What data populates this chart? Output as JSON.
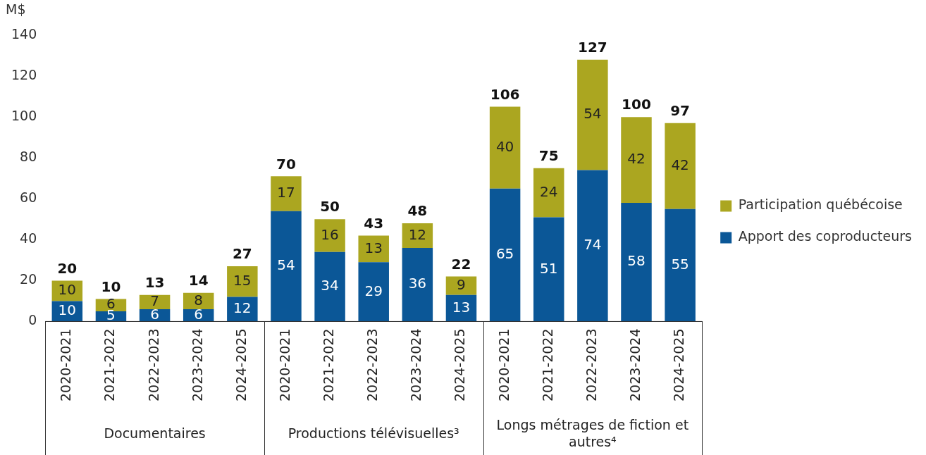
{
  "chart_data": {
    "type": "bar",
    "stacked": true,
    "ylabel": "M$",
    "categories": [
      "2020-2021",
      "2021-2022",
      "2022-2023",
      "2023-2024",
      "2024-2025",
      "2020-2021",
      "2021-2022",
      "2022-2023",
      "2023-2024",
      "2024-2025",
      "2020-2021",
      "2021-2022",
      "2022-2023",
      "2023-2024",
      "2024-2025"
    ],
    "series": [
      {
        "name": "Apport des coproducteurs",
        "color": "#0b5797",
        "values": [
          10,
          5,
          6,
          6,
          12,
          54,
          34,
          29,
          36,
          13,
          65,
          51,
          74,
          58,
          55
        ]
      },
      {
        "name": "Participation québécoise",
        "color": "#aba620",
        "values": [
          10,
          6,
          7,
          8,
          15,
          17,
          16,
          13,
          12,
          9,
          40,
          24,
          54,
          42,
          42
        ]
      }
    ],
    "totals": [
      "20",
      "10",
      "13",
      "14",
      "27",
      "70",
      "50",
      "43",
      "48",
      "22",
      "106",
      "75",
      "127",
      "100",
      "97"
    ],
    "data_labels": true,
    "annotations": [
      "Documentaires",
      "Productions télévisuelles³",
      "Longs métrages de fiction et autres⁴"
    ],
    "ylim": [
      0,
      140
    ],
    "yticks": [
      0,
      20,
      40,
      60,
      80,
      100,
      120,
      140
    ],
    "grid": false,
    "legend": "right"
  }
}
